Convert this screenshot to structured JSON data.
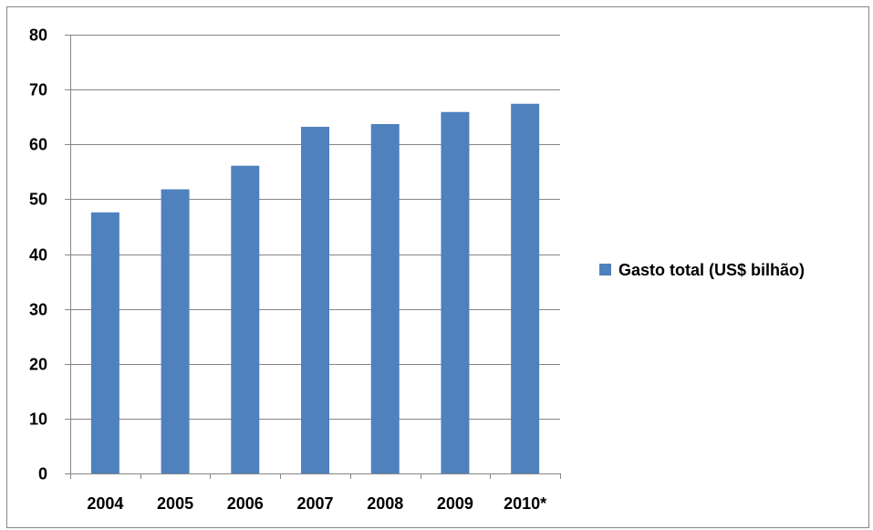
{
  "chart_data": {
    "type": "bar",
    "categories": [
      "2004",
      "2005",
      "2006",
      "2007",
      "2008",
      "2009",
      "2010*"
    ],
    "series": [
      {
        "name": "Gasto total (US$ bilhão)",
        "values": [
          47.6,
          51.8,
          56.1,
          63.2,
          63.7,
          65.9,
          67.4
        ],
        "color": "#4F81BD"
      }
    ],
    "title": "",
    "xlabel": "",
    "ylabel": "",
    "ylim": [
      0,
      80
    ],
    "yticks": [
      "0",
      "10",
      "20",
      "30",
      "40",
      "50",
      "60",
      "70",
      "80"
    ],
    "grid": true,
    "legend_position": "right"
  }
}
